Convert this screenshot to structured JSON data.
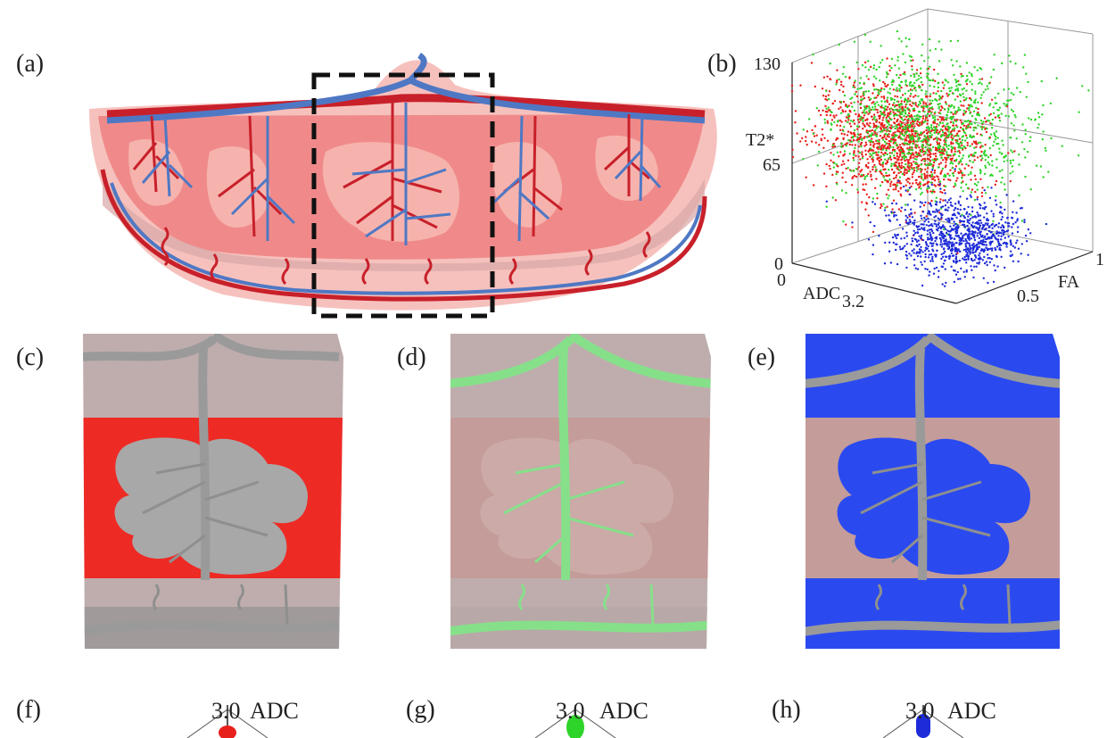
{
  "panels": {
    "a": "(a)",
    "b": "(b)",
    "c": "(c)",
    "d": "(d)",
    "e": "(e)",
    "f": "(f)",
    "g": "(g)",
    "h": "(h)"
  },
  "scatter": {
    "zlabel": "T2*",
    "xlabel": "ADC",
    "ylabel": "FA",
    "z_ticks": [
      "130",
      "65",
      "0"
    ],
    "x_ticks": [
      "0",
      "3.2"
    ],
    "y_ticks": [
      "0.5",
      "1"
    ]
  },
  "chart_data": {
    "type": "scatter",
    "series": [
      {
        "color": "#e8201c",
        "adc_center": 1.6,
        "fa_center": 0.2,
        "t2_center": 85
      },
      {
        "color": "#2fd42a",
        "adc_center": 1.2,
        "fa_center": 0.55,
        "t2_center": 80
      },
      {
        "color": "#1d2bd8",
        "adc_center": 2.6,
        "fa_center": 0.25,
        "t2_center": 30
      }
    ],
    "xlim": [
      0,
      3.2
    ],
    "ylim": [
      0,
      1
    ],
    "zlim": [
      0,
      130
    ],
    "grid": true
  },
  "bottom_axes": {
    "f": {
      "tick": "3.0",
      "label": "ADC",
      "color": "#e8201c"
    },
    "g": {
      "tick": "3.0",
      "label": "ADC",
      "color": "#2fd42a"
    },
    "h": {
      "tick": "3.0",
      "label": "ADC",
      "color": "#1d2bd8"
    }
  },
  "colors": {
    "artery": "#c8202a",
    "vein": "#4f78c4",
    "tissue": "#f08a8a",
    "outer": "#f6c1bd",
    "gray_bg": "#bfadad",
    "gray_vessel": "#9a9a9a",
    "red_fill": "#ee2a25",
    "green_vessel": "#86e08a",
    "blue_fill": "#2a4af0"
  }
}
